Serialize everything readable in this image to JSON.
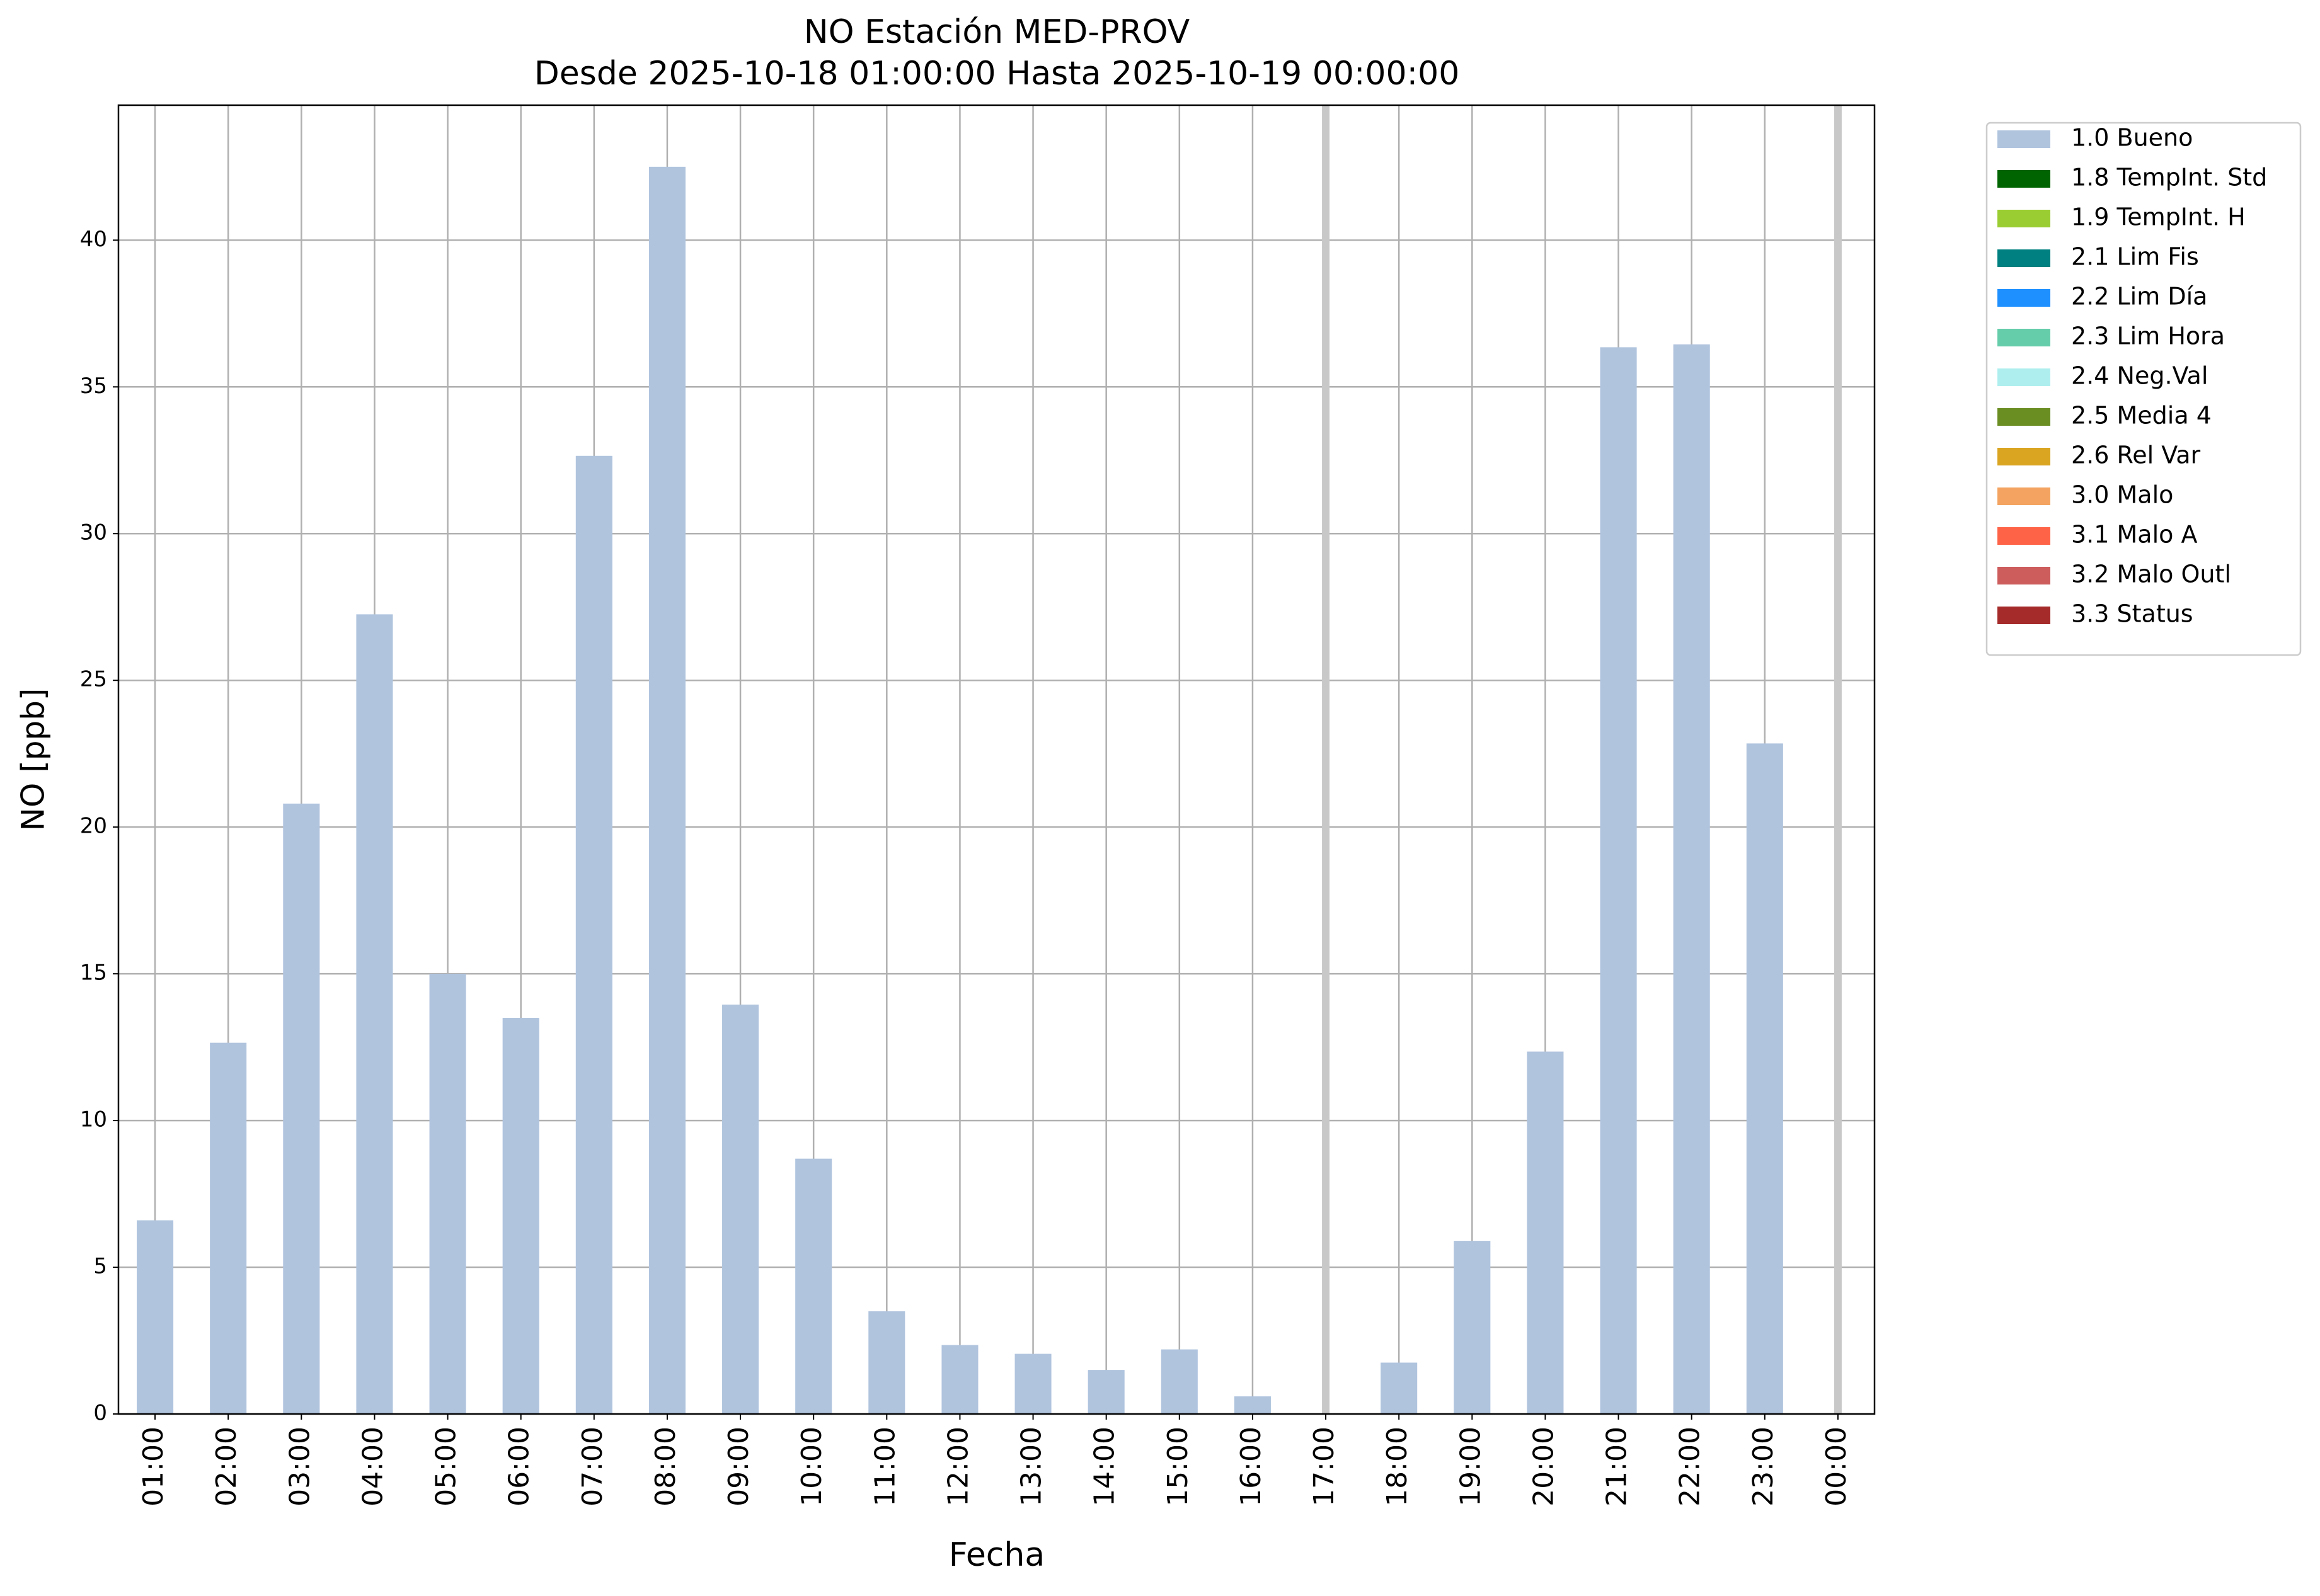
{
  "chart_data": {
    "type": "bar",
    "title": "NO Estación MED-PROV",
    "subtitle": "Desde 2025-10-18 01:00:00 Hasta 2025-10-19 00:00:00",
    "x_label": "Fecha",
    "y_label": "NO [ppb]",
    "categories": [
      "01:00",
      "02:00",
      "03:00",
      "04:00",
      "05:00",
      "06:00",
      "07:00",
      "08:00",
      "09:00",
      "10:00",
      "11:00",
      "12:00",
      "13:00",
      "14:00",
      "15:00",
      "16:00",
      "17:00",
      "18:00",
      "19:00",
      "20:00",
      "21:00",
      "22:00",
      "23:00",
      "00:00"
    ],
    "series": [
      {
        "name": "1.0 Bueno",
        "color": "#b0c4de",
        "values": [
          6.6,
          12.65,
          20.8,
          27.25,
          15.0,
          13.5,
          32.65,
          42.5,
          13.95,
          8.7,
          3.5,
          2.35,
          2.05,
          1.5,
          2.2,
          0.6,
          null,
          1.75,
          5.9,
          12.35,
          36.35,
          36.45,
          22.85,
          null
        ]
      },
      {
        "name": "1.8 TempInt. Std",
        "color": "#006400",
        "values": [
          null,
          null,
          null,
          null,
          null,
          null,
          null,
          null,
          null,
          null,
          null,
          null,
          null,
          null,
          null,
          null,
          null,
          null,
          null,
          null,
          null,
          null,
          null,
          null
        ]
      },
      {
        "name": "1.9 TempInt. H",
        "color": "#9acd32",
        "values": [
          null,
          null,
          null,
          null,
          null,
          null,
          null,
          null,
          null,
          null,
          null,
          null,
          null,
          null,
          null,
          null,
          null,
          null,
          null,
          null,
          null,
          null,
          null,
          null
        ]
      },
      {
        "name": "2.1 Lim Fis",
        "color": "#008080",
        "values": [
          null,
          null,
          null,
          null,
          null,
          null,
          null,
          null,
          null,
          null,
          null,
          null,
          null,
          null,
          null,
          null,
          null,
          null,
          null,
          null,
          null,
          null,
          null,
          null
        ]
      },
      {
        "name": "2.2 Lim Día",
        "color": "#1e90ff",
        "values": [
          null,
          null,
          null,
          null,
          null,
          null,
          null,
          null,
          null,
          null,
          null,
          null,
          null,
          null,
          null,
          null,
          null,
          null,
          null,
          null,
          null,
          null,
          null,
          null
        ]
      },
      {
        "name": "2.3 Lim Hora",
        "color": "#66cdaa",
        "values": [
          null,
          null,
          null,
          null,
          null,
          null,
          null,
          null,
          null,
          null,
          null,
          null,
          null,
          null,
          null,
          null,
          null,
          null,
          null,
          null,
          null,
          null,
          null,
          null
        ]
      },
      {
        "name": "2.4 Neg.Val",
        "color": "#afeeee",
        "values": [
          null,
          null,
          null,
          null,
          null,
          null,
          null,
          null,
          null,
          null,
          null,
          null,
          null,
          null,
          null,
          null,
          null,
          null,
          null,
          null,
          null,
          null,
          null,
          null
        ]
      },
      {
        "name": "2.5 Media 4",
        "color": "#6b8e23",
        "values": [
          null,
          null,
          null,
          null,
          null,
          null,
          null,
          null,
          null,
          null,
          null,
          null,
          null,
          null,
          null,
          null,
          null,
          null,
          null,
          null,
          null,
          null,
          null,
          null
        ]
      },
      {
        "name": "2.6 Rel Var",
        "color": "#daa520",
        "values": [
          null,
          null,
          null,
          null,
          null,
          null,
          null,
          null,
          null,
          null,
          null,
          null,
          null,
          null,
          null,
          null,
          null,
          null,
          null,
          null,
          null,
          null,
          null,
          null
        ]
      },
      {
        "name": "3.0 Malo",
        "color": "#f4a460",
        "values": [
          null,
          null,
          null,
          null,
          null,
          null,
          null,
          null,
          null,
          null,
          null,
          null,
          null,
          null,
          null,
          null,
          null,
          null,
          null,
          null,
          null,
          null,
          null,
          null
        ]
      },
      {
        "name": "3.1 Malo A",
        "color": "#ff6347",
        "values": [
          null,
          null,
          null,
          null,
          null,
          null,
          null,
          null,
          null,
          null,
          null,
          null,
          null,
          null,
          null,
          null,
          null,
          null,
          null,
          null,
          null,
          null,
          null,
          null
        ]
      },
      {
        "name": "3.2 Malo Outl",
        "color": "#cd5c5c",
        "values": [
          null,
          null,
          null,
          null,
          null,
          null,
          null,
          null,
          null,
          null,
          null,
          null,
          null,
          null,
          null,
          null,
          null,
          null,
          null,
          null,
          null,
          null,
          null,
          null
        ]
      },
      {
        "name": "3.3 Status",
        "color": "#a52a2a",
        "values": [
          null,
          null,
          null,
          null,
          null,
          null,
          null,
          null,
          null,
          null,
          null,
          null,
          null,
          null,
          null,
          null,
          null,
          null,
          null,
          null,
          null,
          null,
          null,
          null
        ]
      }
    ],
    "missing_color": "#c8c8c8",
    "ylim": [
      0,
      44.6
    ],
    "yticks": [
      0,
      5,
      10,
      15,
      20,
      25,
      30,
      35,
      40
    ],
    "grid": true,
    "legend": "outside-upper-right"
  }
}
